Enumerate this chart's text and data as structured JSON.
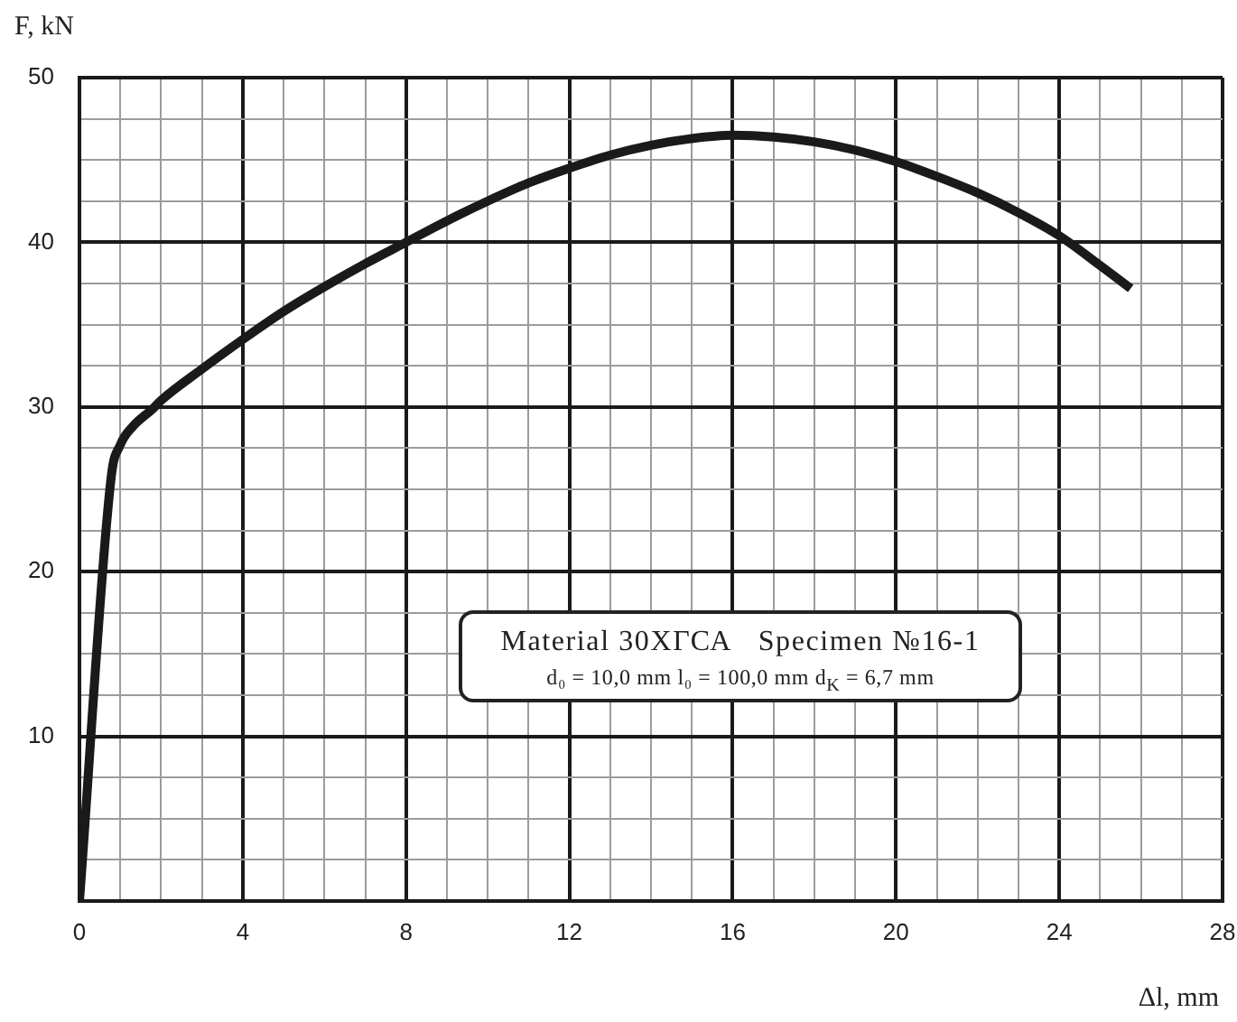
{
  "chart_data": {
    "type": "line",
    "xlabel": "Δl, mm",
    "ylabel": "F, kN",
    "annotations": [
      "Material 30ХГСА   Specimen №16-1",
      "d₀ = 10,0 mm l₀ = 100,0 mm d$_{K}$ = 6,7 mm"
    ],
    "x": [
      0,
      0.78,
      1.0,
      1.3,
      1.8,
      2,
      3,
      4,
      5,
      6,
      7,
      8,
      9,
      10,
      11,
      12,
      13,
      14,
      15,
      16,
      17,
      18,
      19,
      20,
      21,
      22,
      23,
      24,
      25,
      25.75
    ],
    "series": [
      {
        "color": "#1a1a1a",
        "values": [
          0,
          25.8,
          27.7,
          28.8,
          29.9,
          30.4,
          32.3,
          34.1,
          35.8,
          37.3,
          38.7,
          40.0,
          41.3,
          42.5,
          43.6,
          44.5,
          45.3,
          45.9,
          46.3,
          46.5,
          46.4,
          46.1,
          45.6,
          44.9,
          44.0,
          43.0,
          41.8,
          40.4,
          38.6,
          37.2
        ]
      }
    ],
    "xlim": [
      0,
      28
    ],
    "ylim": [
      0,
      50
    ],
    "xticks": [
      0,
      {
        "value": 1,
        "label": null
      },
      {
        "value": 2,
        "label": null
      },
      {
        "value": 3,
        "label": null
      },
      4,
      {
        "value": 5,
        "label": null
      },
      {
        "value": 6,
        "label": null
      },
      {
        "value": 7,
        "label": null
      },
      8,
      {
        "value": 9,
        "label": null
      },
      {
        "value": 10,
        "label": null
      },
      {
        "value": 11,
        "label": null
      },
      12,
      {
        "value": 13,
        "label": null
      },
      {
        "value": 14,
        "label": null
      },
      {
        "value": 15,
        "label": null
      },
      16,
      {
        "value": 17,
        "label": null
      },
      {
        "value": 18,
        "label": null
      },
      {
        "value": 19,
        "label": null
      },
      20,
      {
        "value": 21,
        "label": null
      },
      {
        "value": 22,
        "label": null
      },
      {
        "value": 23,
        "label": null
      },
      24,
      {
        "value": 25,
        "label": null
      },
      {
        "value": 26,
        "label": null
      },
      {
        "value": 27,
        "label": null
      },
      28
    ],
    "yticks": [
      {
        "value": 0,
        "label": null
      },
      {
        "value": 2.5,
        "label": null
      },
      {
        "value": 5,
        "label": null
      },
      {
        "value": 7.5,
        "label": null
      },
      10,
      {
        "value": 12.5,
        "label": null
      },
      {
        "value": 15,
        "label": null
      },
      {
        "value": 17.5,
        "label": null
      },
      20,
      {
        "value": 22.5,
        "label": null
      },
      {
        "value": 25,
        "label": null
      },
      {
        "value": 27.5,
        "label": null
      },
      30,
      {
        "value": 32.5,
        "label": null
      },
      {
        "value": 35,
        "label": null
      },
      {
        "value": 37.5,
        "label": null
      },
      40,
      {
        "value": 42.5,
        "label": null
      },
      {
        "value": 45,
        "label": null
      },
      {
        "value": 47.5,
        "label": null
      },
      50
    ],
    "grid": true,
    "legend": false,
    "marker": "none"
  }
}
